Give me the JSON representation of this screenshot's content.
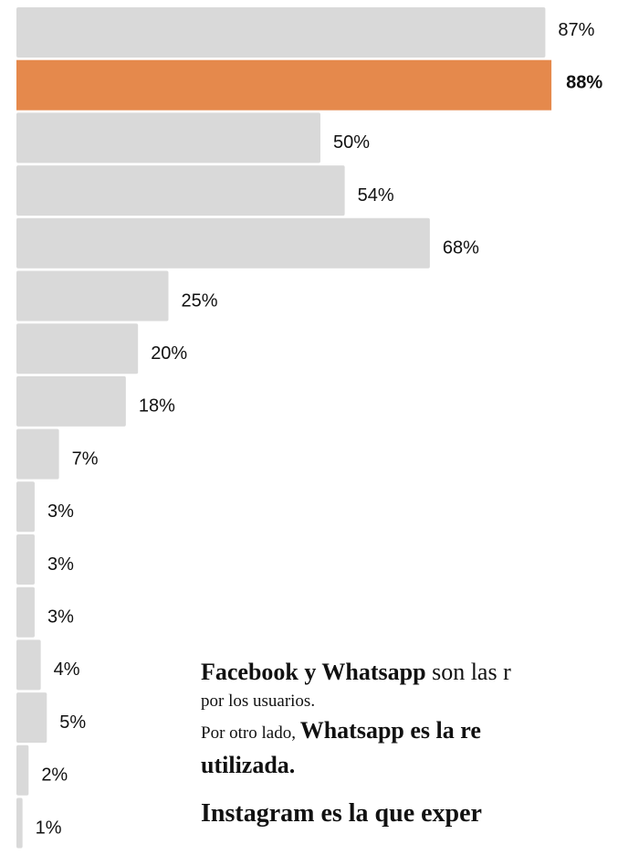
{
  "chart_data": {
    "type": "bar",
    "orientation": "horizontal",
    "categories": [
      null,
      null,
      null,
      null,
      null,
      null,
      null,
      null,
      null,
      null,
      null,
      null,
      null,
      null,
      null,
      null
    ],
    "values": [
      87,
      88,
      50,
      54,
      68,
      25,
      20,
      18,
      7,
      3,
      3,
      3,
      4,
      5,
      2,
      1
    ],
    "value_labels": [
      "87%",
      "88%",
      "50%",
      "54%",
      "68%",
      "25%",
      "20%",
      "18%",
      "7%",
      "3%",
      "3%",
      "3%",
      "4%",
      "5%",
      "2%",
      "1%"
    ],
    "colors": [
      "#d9d9d9",
      "#e5894c",
      "#d9d9d9",
      "#d9d9d9",
      "#d9d9d9",
      "#d9d9d9",
      "#d9d9d9",
      "#d9d9d9",
      "#d9d9d9",
      "#d9d9d9",
      "#d9d9d9",
      "#d9d9d9",
      "#d9d9d9",
      "#d9d9d9",
      "#d9d9d9",
      "#d9d9d9"
    ],
    "highlight_index": 1,
    "xlim": [
      0,
      100
    ]
  },
  "text": {
    "line1_bold": "Facebook y Whatsapp",
    "line1_rest": " son las r",
    "line2": "por los usuarios.",
    "line3_start": "Por otro lado, ",
    "line3_bold": "Whatsapp es la re",
    "line4_bold": "utilizada.",
    "line5_bold": "Instagram es la que exper"
  }
}
